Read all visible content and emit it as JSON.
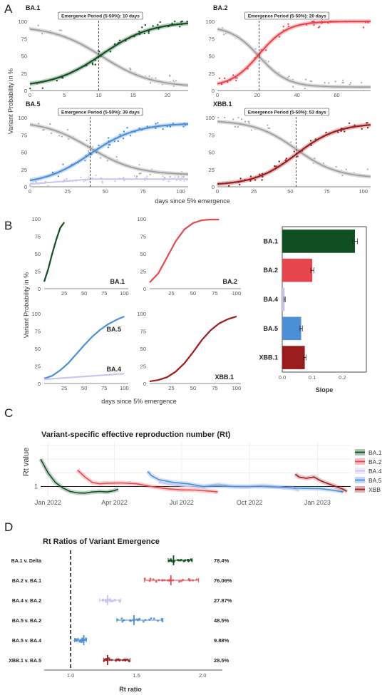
{
  "colors": {
    "BA.1": "#0f4f20",
    "BA.2": "#e8464e",
    "BA.4": "#c9c4ec",
    "BA.5": "#4b8fd6",
    "XBB.1": "#9b1c1c",
    "grey": "#a9a9a9"
  },
  "panels": {
    "A": "A",
    "B": "B",
    "C": "C",
    "D": "D"
  },
  "shared": {
    "y_axis_label": "Variant Probability in %",
    "x_axis_label": "days since 5% emergence"
  },
  "chart_data": [
    {
      "id": "A",
      "type": "scatter",
      "xlabel": "days since 5% emergence",
      "ylabel": "Variant Probability in %",
      "subplots": [
        {
          "title": "BA.1",
          "annotation": "Emergence Period (5-50%): 10 days",
          "emergence_day": 10,
          "xlim": [
            0,
            23
          ],
          "xticks": [
            0,
            5,
            10,
            15,
            20
          ],
          "ylim": [
            0,
            100
          ],
          "yticks": [
            0,
            25,
            50,
            75,
            100
          ],
          "variants": [
            "BA.1"
          ]
        },
        {
          "title": "BA.2",
          "annotation": "Emergence Period (5-50%): 20 days",
          "emergence_day": 21,
          "xlim": [
            0,
            77
          ],
          "xticks": [
            0,
            20,
            40,
            60
          ],
          "ylim": [
            0,
            100
          ],
          "yticks": [
            0,
            25,
            50,
            75,
            100
          ],
          "variants": [
            "BA.2"
          ]
        },
        {
          "title": "BA.5",
          "annotation": "Emergence Period (5-50%): 39 days",
          "emergence_day": 40,
          "xlim": [
            0,
            105
          ],
          "xticks": [
            0,
            25,
            50,
            75,
            100
          ],
          "ylim": [
            0,
            100
          ],
          "yticks": [
            0,
            25,
            50,
            75,
            100
          ],
          "variants": [
            "BA.5",
            "BA.4"
          ]
        },
        {
          "title": "XBB.1",
          "annotation": "Emergence Period (5-50%): 53 days",
          "emergence_day": 54,
          "xlim": [
            0,
            105
          ],
          "xticks": [
            0,
            25,
            50,
            75,
            100
          ],
          "ylim": [
            0,
            100
          ],
          "yticks": [
            0,
            25,
            50,
            75,
            100
          ],
          "variants": [
            "XBB.1"
          ]
        }
      ]
    },
    {
      "id": "B-curves",
      "type": "line",
      "xlabel": "days since 5% emergence",
      "ylabel": "Variant Probability in %",
      "subplots": [
        {
          "label": "BA.1",
          "xlim": [
            0,
            105
          ],
          "xticks": [
            25,
            50,
            75,
            100
          ],
          "yticks": [
            0,
            25,
            50,
            75,
            100
          ],
          "series": [
            {
              "name": "BA.1",
              "x": [
                0,
                5,
                10,
                15,
                20,
                25
              ],
              "y": [
                10,
                28,
                50,
                70,
                87,
                95
              ]
            }
          ]
        },
        {
          "label": "BA.2",
          "xlim": [
            0,
            105
          ],
          "xticks": [
            25,
            50,
            75,
            100
          ],
          "yticks": [
            0,
            25,
            50,
            75,
            100
          ],
          "series": [
            {
              "name": "BA.2",
              "x": [
                0,
                10,
                20,
                30,
                40,
                50,
                60,
                70,
                80
              ],
              "y": [
                9,
                22,
                45,
                68,
                85,
                94,
                98,
                99,
                99
              ]
            }
          ]
        },
        {
          "label": "BA.5",
          "xlim": [
            0,
            105
          ],
          "xticks": [
            25,
            50,
            75,
            100
          ],
          "yticks": [
            0,
            25,
            50,
            75,
            100
          ],
          "series": [
            {
              "name": "BA.5",
              "x": [
                0,
                10,
                20,
                30,
                40,
                50,
                60,
                70,
                80,
                90,
                100
              ],
              "y": [
                7,
                11,
                19,
                29,
                42,
                55,
                67,
                77,
                85,
                91,
                96
              ]
            },
            {
              "name": "BA.4",
              "x": [
                0,
                25,
                50,
                75,
                100
              ],
              "y": [
                6,
                8,
                10,
                12,
                14
              ]
            }
          ]
        },
        {
          "label": "XBB.1",
          "xlim": [
            0,
            105
          ],
          "xticks": [
            25,
            50,
            75,
            100
          ],
          "yticks": [
            0,
            25,
            50,
            75,
            100
          ],
          "series": [
            {
              "name": "XBB.1",
              "x": [
                0,
                10,
                20,
                30,
                40,
                50,
                60,
                70,
                80,
                90,
                100
              ],
              "y": [
                3,
                5,
                9,
                17,
                29,
                45,
                62,
                76,
                86,
                92,
                96
              ]
            }
          ]
        }
      ]
    },
    {
      "id": "B-slope",
      "type": "bar",
      "orientation": "horizontal",
      "categories": [
        "BA.1",
        "BA.2",
        "BA.4",
        "BA.5",
        "XBB.1"
      ],
      "values": [
        0.242,
        0.1,
        0.008,
        0.063,
        0.075
      ],
      "errors": [
        0.008,
        0.005,
        0.002,
        0.004,
        0.004
      ],
      "xlabel": "Slope",
      "xlim": [
        0,
        0.28
      ],
      "xticks": [
        0.0,
        0.1,
        0.2
      ]
    },
    {
      "id": "C",
      "type": "line",
      "title": "Variant-specific effective reproduction number (Rt)",
      "ylabel": "Rt value",
      "xtick_labels": [
        "Jan 2022",
        "Apr 2022",
        "Jul 2022",
        "Oct 2022",
        "Jan 2023"
      ],
      "xtick_days": [
        0,
        90,
        181,
        273,
        365
      ],
      "xlim": [
        -10,
        410
      ],
      "ylim": [
        0.65,
        2.6
      ],
      "yticks": [
        1
      ],
      "legend": [
        "BA.1",
        "BA.2",
        "BA.4",
        "BA.5",
        "XBB"
      ],
      "legend_position": "right",
      "series": [
        {
          "name": "BA.1",
          "x": [
            -10,
            -5,
            0,
            10,
            20,
            30,
            40,
            50,
            60,
            70,
            80,
            90,
            95
          ],
          "y": [
            2.0,
            1.75,
            1.5,
            1.15,
            0.95,
            0.82,
            0.77,
            0.76,
            0.8,
            0.82,
            0.8,
            0.85,
            0.9
          ]
        },
        {
          "name": "BA.2",
          "x": [
            40,
            50,
            60,
            70,
            80,
            100,
            120,
            140,
            160,
            180,
            200,
            220,
            230
          ],
          "y": [
            1.6,
            1.35,
            1.15,
            1.1,
            1.12,
            1.13,
            1.1,
            1.0,
            0.92,
            0.88,
            0.87,
            0.83,
            0.8
          ]
        },
        {
          "name": "BA.4",
          "x": [
            150,
            170,
            190,
            210,
            230,
            250,
            270,
            290,
            310,
            330,
            340
          ],
          "y": [
            1.15,
            1.05,
            1.0,
            0.98,
            1.1,
            1.0,
            0.98,
            1.05,
            1.0,
            0.95,
            0.85
          ]
        },
        {
          "name": "BA.5",
          "x": [
            135,
            140,
            150,
            170,
            190,
            210,
            230,
            250,
            270,
            290,
            310,
            330,
            350,
            370,
            390,
            400
          ],
          "y": [
            1.55,
            1.4,
            1.25,
            1.15,
            1.1,
            1.0,
            1.02,
            1.0,
            1.0,
            1.0,
            0.98,
            0.95,
            0.93,
            0.92,
            0.85,
            0.8
          ]
        },
        {
          "name": "XBB",
          "x": [
            335,
            340,
            350,
            360,
            370,
            380,
            390,
            400,
            405
          ],
          "y": [
            1.45,
            1.35,
            1.3,
            1.35,
            1.2,
            1.1,
            1.0,
            0.9,
            0.82
          ]
        }
      ]
    },
    {
      "id": "D",
      "type": "scatter",
      "title": "Rt Ratios of Variant Emergence",
      "xlabel": "Rt ratio",
      "xlim": [
        0.8,
        2.15
      ],
      "xticks": [
        1.0,
        1.5,
        2.0
      ],
      "reference_line": 1.0,
      "rows": [
        {
          "label": "BA.1 v. Delta",
          "color_key": "BA.1",
          "center": 1.78,
          "min": 1.74,
          "max": 1.92,
          "pct": "78.4%"
        },
        {
          "label": "BA.2 v. BA.1",
          "color_key": "BA.2",
          "center": 1.76,
          "min": 1.56,
          "max": 1.97,
          "pct": "76.06%"
        },
        {
          "label": "BA.4 v. BA.2",
          "color_key": "BA.4",
          "center": 1.28,
          "min": 1.22,
          "max": 1.38,
          "pct": "27.87%"
        },
        {
          "label": "BA.5 v. BA.2",
          "color_key": "BA.5",
          "center": 1.48,
          "min": 1.35,
          "max": 1.7,
          "pct": "48.5%"
        },
        {
          "label": "BA.5 v. BA.4",
          "color_key": "BA.5",
          "center": 1.1,
          "min": 1.03,
          "max": 1.12,
          "pct": "9.88%"
        },
        {
          "label": "XBB.1 v. BA.5",
          "color_key": "XBB.1",
          "center": 1.28,
          "min": 1.25,
          "max": 1.45,
          "pct": "28.5%"
        }
      ]
    }
  ]
}
